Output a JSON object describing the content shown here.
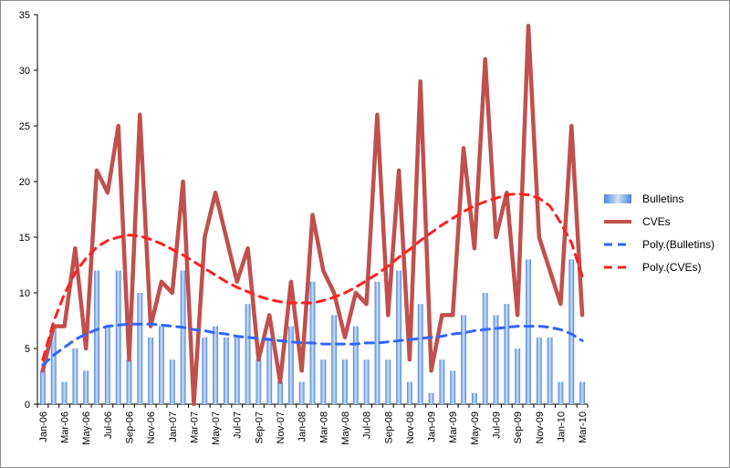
{
  "chart_data": {
    "type": "bar",
    "categories": [
      "Jan-06",
      "Feb-06",
      "Mar-06",
      "Apr-06",
      "May-06",
      "Jun-06",
      "Jul-06",
      "Aug-06",
      "Sep-06",
      "Oct-06",
      "Nov-06",
      "Dec-06",
      "Jan-07",
      "Feb-07",
      "Mar-07",
      "Apr-07",
      "May-07",
      "Jun-07",
      "Jul-07",
      "Aug-07",
      "Sep-07",
      "Oct-07",
      "Nov-07",
      "Dec-07",
      "Jan-08",
      "Feb-08",
      "Mar-08",
      "Apr-08",
      "May-08",
      "Jun-08",
      "Jul-08",
      "Aug-08",
      "Sep-08",
      "Oct-08",
      "Nov-08",
      "Dec-08",
      "Jan-09",
      "Feb-09",
      "Mar-09",
      "Apr-09",
      "May-09",
      "Jun-09",
      "Jul-09",
      "Aug-09",
      "Sep-09",
      "Oct-09",
      "Nov-09",
      "Dec-09",
      "Jan-10",
      "Feb-10",
      "Mar-10"
    ],
    "tick_labels": [
      "Jan-06",
      "Mar-06",
      "May-06",
      "Jul-06",
      "Sep-06",
      "Nov-06",
      "Jan-07",
      "Mar-07",
      "May-07",
      "Jul-07",
      "Sep-07",
      "Nov-07",
      "Jan-08",
      "Mar-08",
      "May-08",
      "Jul-08",
      "Sep-08",
      "Nov-08",
      "Jan-09",
      "Mar-09",
      "May-09",
      "Jul-09",
      "Sep-09",
      "Nov-09",
      "Jan-10",
      "Mar-10"
    ],
    "series": [
      {
        "name": "Bulletins",
        "kind": "bar",
        "color": "#6fa0e0",
        "values": [
          3,
          7,
          2,
          5,
          3,
          12,
          7,
          12,
          4,
          10,
          6,
          7,
          4,
          12,
          0,
          6,
          7,
          6,
          6,
          9,
          4,
          6,
          2,
          7,
          2,
          11,
          4,
          8,
          4,
          7,
          4,
          11,
          4,
          12,
          2,
          9,
          1,
          4,
          3,
          8,
          1,
          10,
          8,
          9,
          5,
          13,
          6,
          6,
          2,
          13,
          2
        ]
      },
      {
        "name": "CVEs",
        "kind": "line",
        "color": "#c0504d",
        "values": [
          3,
          7,
          7,
          14,
          5,
          21,
          19,
          25,
          4,
          26,
          7,
          11,
          10,
          20,
          0,
          15,
          19,
          15,
          11,
          14,
          4,
          8,
          2,
          11,
          3,
          17,
          12,
          10,
          6,
          10,
          9,
          26,
          8,
          21,
          4,
          29,
          3,
          8,
          8,
          23,
          14,
          31,
          15,
          19,
          8,
          34,
          15,
          12,
          9,
          25,
          8
        ]
      },
      {
        "name": "Poly.(Bulletins)",
        "kind": "trend",
        "color": "#3366ff",
        "values": [
          3.5,
          4.4,
          5.1,
          5.8,
          6.3,
          6.7,
          7.0,
          7.1,
          7.2,
          7.2,
          7.2,
          7.1,
          7.0,
          6.9,
          6.7,
          6.6,
          6.4,
          6.3,
          6.1,
          6.0,
          5.9,
          5.8,
          5.7,
          5.6,
          5.5,
          5.5,
          5.4,
          5.4,
          5.4,
          5.4,
          5.5,
          5.5,
          5.6,
          5.7,
          5.8,
          5.9,
          6.0,
          6.1,
          6.3,
          6.4,
          6.6,
          6.7,
          6.8,
          6.9,
          7.0,
          7.0,
          7.0,
          6.9,
          6.7,
          6.3,
          5.7
        ]
      },
      {
        "name": "Poly.(CVEs)",
        "kind": "trend",
        "color": "#ff2020",
        "values": [
          4,
          7.4,
          9.9,
          11.8,
          13.1,
          14.1,
          14.7,
          15.0,
          15.2,
          15.1,
          14.8,
          14.4,
          13.9,
          13.4,
          12.8,
          12.2,
          11.6,
          11.0,
          10.5,
          10.1,
          9.7,
          9.4,
          9.2,
          9.1,
          9.1,
          9.1,
          9.3,
          9.6,
          10.0,
          10.5,
          11.1,
          11.7,
          12.4,
          13.2,
          13.9,
          14.7,
          15.4,
          16.1,
          16.7,
          17.3,
          17.8,
          18.2,
          18.5,
          18.8,
          18.9,
          18.8,
          18.5,
          17.8,
          16.3,
          14.5,
          11.5
        ]
      }
    ],
    "title": "",
    "xlabel": "",
    "ylabel": "",
    "ylim": [
      0,
      35
    ],
    "yticks": [
      0,
      5,
      10,
      15,
      20,
      25,
      30,
      35
    ],
    "grid": false,
    "legend_position": "right"
  }
}
